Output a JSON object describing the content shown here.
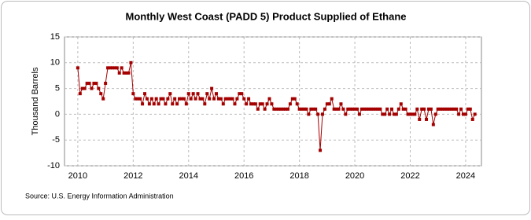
{
  "chart_data": {
    "type": "line",
    "title": "Monthly West Coast (PADD 5) Product Supplied of Ethane",
    "y_label": "Thousand Barrels",
    "source": "Source: U.S. Energy Information Administration",
    "color": "#a50000",
    "grid": true,
    "xlim": [
      2009.52,
      2024.57
    ],
    "xticks": [
      2010,
      2012,
      2014,
      2016,
      2018,
      2020,
      2022,
      2024
    ],
    "ylim": [
      -10,
      15
    ],
    "yticks": [
      -10,
      -5,
      0,
      5,
      10,
      15
    ],
    "x": [
      2010,
      2010.083,
      2010.167,
      2010.25,
      2010.333,
      2010.417,
      2010.5,
      2010.583,
      2010.667,
      2010.75,
      2010.833,
      2010.917,
      2011,
      2011.083,
      2011.167,
      2011.25,
      2011.333,
      2011.417,
      2011.5,
      2011.583,
      2011.667,
      2011.75,
      2011.833,
      2011.917,
      2012,
      2012.083,
      2012.167,
      2012.25,
      2012.333,
      2012.417,
      2012.5,
      2012.583,
      2012.667,
      2012.75,
      2012.833,
      2012.917,
      2013,
      2013.083,
      2013.167,
      2013.25,
      2013.333,
      2013.417,
      2013.5,
      2013.583,
      2013.667,
      2013.75,
      2013.833,
      2013.917,
      2014,
      2014.083,
      2014.167,
      2014.25,
      2014.333,
      2014.417,
      2014.5,
      2014.583,
      2014.667,
      2014.75,
      2014.833,
      2014.917,
      2015,
      2015.083,
      2015.167,
      2015.25,
      2015.333,
      2015.417,
      2015.5,
      2015.583,
      2015.667,
      2015.75,
      2015.833,
      2015.917,
      2016,
      2016.083,
      2016.167,
      2016.25,
      2016.333,
      2016.417,
      2016.5,
      2016.583,
      2016.667,
      2016.75,
      2016.833,
      2016.917,
      2017,
      2017.083,
      2017.167,
      2017.25,
      2017.333,
      2017.417,
      2017.5,
      2017.583,
      2017.667,
      2017.75,
      2017.833,
      2017.917,
      2018,
      2018.083,
      2018.167,
      2018.25,
      2018.333,
      2018.417,
      2018.5,
      2018.583,
      2018.667,
      2018.75,
      2018.833,
      2018.917,
      2019,
      2019.083,
      2019.167,
      2019.25,
      2019.333,
      2019.417,
      2019.5,
      2019.583,
      2019.667,
      2019.75,
      2019.833,
      2019.917,
      2020,
      2020.083,
      2020.167,
      2020.25,
      2020.333,
      2020.417,
      2020.5,
      2020.583,
      2020.667,
      2020.75,
      2020.833,
      2020.917,
      2021,
      2021.083,
      2021.167,
      2021.25,
      2021.333,
      2021.417,
      2021.5,
      2021.583,
      2021.667,
      2021.75,
      2021.833,
      2021.917,
      2022,
      2022.083,
      2022.167,
      2022.25,
      2022.333,
      2022.417,
      2022.5,
      2022.583,
      2022.667,
      2022.75,
      2022.833,
      2022.917,
      2023,
      2023.083,
      2023.167,
      2023.25,
      2023.333,
      2023.417,
      2023.5,
      2023.583,
      2023.667,
      2023.75,
      2023.833,
      2023.917,
      2024,
      2024.083,
      2024.167,
      2024.25,
      2024.333
    ],
    "values": [
      9,
      4,
      5,
      5,
      6,
      6,
      5,
      6,
      6,
      5,
      4,
      3,
      6,
      9,
      9,
      9,
      9,
      9,
      8,
      9,
      8,
      8,
      8,
      10,
      4,
      3,
      3,
      3,
      2,
      4,
      3,
      2,
      3,
      2,
      3,
      2,
      3,
      3,
      2,
      3,
      4,
      2,
      3,
      2,
      3,
      3,
      3,
      2,
      4,
      3,
      4,
      3,
      4,
      3,
      3,
      2,
      4,
      3,
      5,
      3,
      4,
      3,
      3,
      2,
      3,
      3,
      3,
      3,
      2,
      3,
      4,
      4,
      3,
      2,
      3,
      2,
      2,
      2,
      1,
      2,
      2,
      1,
      2,
      3,
      2,
      1,
      1,
      1,
      1,
      1,
      1,
      1,
      2,
      3,
      3,
      2,
      1,
      1,
      1,
      1,
      0,
      1,
      1,
      1,
      0,
      -7,
      0,
      1,
      2,
      2,
      3,
      1,
      1,
      1,
      2,
      1,
      0,
      1,
      1,
      1,
      1,
      1,
      0,
      1,
      1,
      1,
      1,
      1,
      1,
      1,
      1,
      1,
      0,
      0,
      1,
      0,
      1,
      0,
      0,
      1,
      2,
      1,
      1,
      0,
      0,
      0,
      0,
      1,
      -1,
      1,
      1,
      -1,
      1,
      1,
      -2,
      0,
      1,
      1,
      1,
      1,
      1,
      1,
      1,
      1,
      1,
      0,
      1,
      0,
      0,
      1,
      1,
      -1,
      0
    ]
  }
}
